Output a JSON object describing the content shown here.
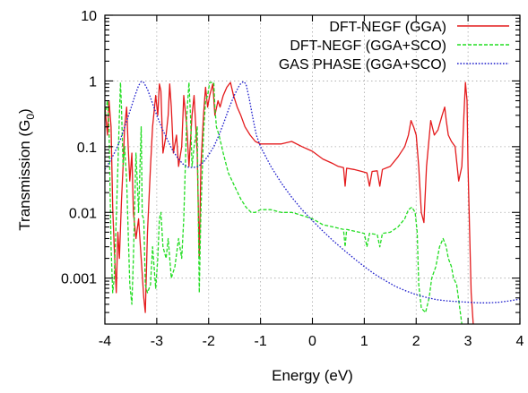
{
  "chart_data": {
    "type": "line",
    "xlabel": "Energy (eV)",
    "ylabel": "Transmission (G",
    "ylabel_sub": "0",
    "ylabel_close": ")",
    "xlim": [
      -4,
      4
    ],
    "ylim": [
      0.0002,
      10
    ],
    "yscale": "log",
    "grid": true,
    "legend_position": "top-right",
    "x_ticks": [
      -4,
      -3,
      -2,
      -1,
      0,
      1,
      2,
      3,
      4
    ],
    "x_tick_labels": [
      "-4",
      "-3",
      "-2",
      "-1",
      "0",
      "1",
      "2",
      "3",
      "4"
    ],
    "y_ticks": [
      0.001,
      0.01,
      0.1,
      1,
      10
    ],
    "y_tick_labels": [
      "0.001",
      "0.01",
      "0.1",
      "1",
      "10"
    ],
    "series": [
      {
        "name": "DFT-NEGF (GGA)",
        "color": "#e41a1c",
        "style": "solid",
        "points": [
          [
            -4.0,
            0.4
          ],
          [
            -3.95,
            0.15
          ],
          [
            -3.92,
            0.5
          ],
          [
            -3.88,
            0.2
          ],
          [
            -3.85,
            0.012
          ],
          [
            -3.82,
            0.003
          ],
          [
            -3.78,
            0.0006
          ],
          [
            -3.75,
            0.005
          ],
          [
            -3.72,
            0.002
          ],
          [
            -3.68,
            0.015
          ],
          [
            -3.65,
            0.05
          ],
          [
            -3.62,
            0.2
          ],
          [
            -3.58,
            0.4
          ],
          [
            -3.55,
            0.1
          ],
          [
            -3.52,
            0.03
          ],
          [
            -3.48,
            0.08
          ],
          [
            -3.45,
            0.01
          ],
          [
            -3.4,
            0.004
          ],
          [
            -3.35,
            0.008
          ],
          [
            -3.3,
            0.002
          ],
          [
            -3.25,
            0.0005
          ],
          [
            -3.22,
            0.0003
          ],
          [
            -3.18,
            0.005
          ],
          [
            -3.12,
            0.05
          ],
          [
            -3.08,
            0.2
          ],
          [
            -3.02,
            0.6
          ],
          [
            -2.98,
            0.3
          ],
          [
            -2.95,
            0.9
          ],
          [
            -2.92,
            0.7
          ],
          [
            -2.88,
            0.08
          ],
          [
            -2.82,
            0.15
          ],
          [
            -2.78,
            0.3
          ],
          [
            -2.75,
            0.9
          ],
          [
            -2.72,
            0.4
          ],
          [
            -2.68,
            0.08
          ],
          [
            -2.62,
            0.15
          ],
          [
            -2.58,
            0.05
          ],
          [
            -2.52,
            0.1
          ],
          [
            -2.48,
            0.6
          ],
          [
            -2.42,
            0.2
          ],
          [
            -2.38,
            0.05
          ],
          [
            -2.32,
            0.3
          ],
          [
            -2.28,
            0.6
          ],
          [
            -2.22,
            0.08
          ],
          [
            -2.18,
            0.002
          ],
          [
            -2.15,
            0.05
          ],
          [
            -2.1,
            0.3
          ],
          [
            -2.06,
            0.8
          ],
          [
            -2.02,
            0.4
          ],
          [
            -1.98,
            0.6
          ],
          [
            -1.92,
            0.9
          ],
          [
            -1.88,
            0.3
          ],
          [
            -1.82,
            0.5
          ],
          [
            -1.78,
            0.4
          ],
          [
            -1.72,
            0.6
          ],
          [
            -1.65,
            0.8
          ],
          [
            -1.58,
            0.95
          ],
          [
            -1.52,
            0.6
          ],
          [
            -1.45,
            0.4
          ],
          [
            -1.38,
            0.3
          ],
          [
            -1.3,
            0.2
          ],
          [
            -1.2,
            0.15
          ],
          [
            -1.1,
            0.12
          ],
          [
            -1.0,
            0.11
          ],
          [
            -0.8,
            0.11
          ],
          [
            -0.6,
            0.11
          ],
          [
            -0.4,
            0.12
          ],
          [
            -0.2,
            0.1
          ],
          [
            0.0,
            0.085
          ],
          [
            0.2,
            0.065
          ],
          [
            0.4,
            0.055
          ],
          [
            0.5,
            0.05
          ],
          [
            0.6,
            0.048
          ],
          [
            0.63,
            0.025
          ],
          [
            0.66,
            0.047
          ],
          [
            0.8,
            0.045
          ],
          [
            0.95,
            0.042
          ],
          [
            1.05,
            0.04
          ],
          [
            1.1,
            0.025
          ],
          [
            1.15,
            0.042
          ],
          [
            1.25,
            0.043
          ],
          [
            1.3,
            0.025
          ],
          [
            1.35,
            0.045
          ],
          [
            1.5,
            0.05
          ],
          [
            1.65,
            0.07
          ],
          [
            1.78,
            0.1
          ],
          [
            1.85,
            0.15
          ],
          [
            1.9,
            0.25
          ],
          [
            1.95,
            0.2
          ],
          [
            2.0,
            0.15
          ],
          [
            2.05,
            0.05
          ],
          [
            2.1,
            0.01
          ],
          [
            2.15,
            0.007
          ],
          [
            2.2,
            0.05
          ],
          [
            2.28,
            0.25
          ],
          [
            2.35,
            0.15
          ],
          [
            2.42,
            0.18
          ],
          [
            2.5,
            0.3
          ],
          [
            2.55,
            0.4
          ],
          [
            2.58,
            0.25
          ],
          [
            2.62,
            0.15
          ],
          [
            2.68,
            0.12
          ],
          [
            2.75,
            0.1
          ],
          [
            2.82,
            0.03
          ],
          [
            2.88,
            0.05
          ],
          [
            2.92,
            0.3
          ],
          [
            2.95,
            0.95
          ],
          [
            2.98,
            0.5
          ],
          [
            3.0,
            0.05
          ],
          [
            3.03,
            0.005
          ],
          [
            3.06,
            0.0006
          ],
          [
            3.1,
            0.0002
          ]
        ]
      },
      {
        "name": "DFT-NEGF (GGA+SCO)",
        "color": "#22dd22",
        "style": "dashed",
        "points": [
          [
            -4.0,
            0.3
          ],
          [
            -3.95,
            0.5
          ],
          [
            -3.92,
            0.2
          ],
          [
            -3.88,
            0.003
          ],
          [
            -3.85,
            0.0006
          ],
          [
            -3.82,
            0.001
          ],
          [
            -3.78,
            0.008
          ],
          [
            -3.75,
            0.05
          ],
          [
            -3.72,
            0.3
          ],
          [
            -3.7,
            0.95
          ],
          [
            -3.68,
            0.4
          ],
          [
            -3.65,
            0.05
          ],
          [
            -3.62,
            0.1
          ],
          [
            -3.58,
            0.03
          ],
          [
            -3.55,
            0.005
          ],
          [
            -3.52,
            0.0008
          ],
          [
            -3.48,
            0.0004
          ],
          [
            -3.45,
            0.002
          ],
          [
            -3.4,
            0.08
          ],
          [
            -3.35,
            0.01
          ],
          [
            -3.3,
            0.2
          ],
          [
            -3.28,
            0.009
          ],
          [
            -3.25,
            0.008
          ],
          [
            -3.22,
            0.0008
          ],
          [
            -3.18,
            0.0006
          ],
          [
            -3.12,
            0.0008
          ],
          [
            -3.08,
            0.003
          ],
          [
            -3.02,
            0.0007
          ],
          [
            -2.98,
            0.002
          ],
          [
            -2.95,
            0.008
          ],
          [
            -2.92,
            0.01
          ],
          [
            -2.88,
            0.003
          ],
          [
            -2.82,
            0.002
          ],
          [
            -2.78,
            0.004
          ],
          [
            -2.72,
            0.001
          ],
          [
            -2.65,
            0.0015
          ],
          [
            -2.58,
            0.004
          ],
          [
            -2.52,
            0.002
          ],
          [
            -2.48,
            0.008
          ],
          [
            -2.42,
            0.3
          ],
          [
            -2.38,
            0.95
          ],
          [
            -2.35,
            0.3
          ],
          [
            -2.32,
            0.05
          ],
          [
            -2.28,
            0.1
          ],
          [
            -2.22,
            0.2
          ],
          [
            -2.18,
            0.0006
          ],
          [
            -2.15,
            0.01
          ],
          [
            -2.1,
            0.15
          ],
          [
            -2.06,
            0.5
          ],
          [
            -2.02,
            0.6
          ],
          [
            -1.98,
            0.95
          ],
          [
            -1.94,
            0.95
          ],
          [
            -1.9,
            0.95
          ],
          [
            -1.88,
            0.4
          ],
          [
            -1.85,
            0.2
          ],
          [
            -1.8,
            0.15
          ],
          [
            -1.72,
            0.08
          ],
          [
            -1.62,
            0.04
          ],
          [
            -1.5,
            0.025
          ],
          [
            -1.38,
            0.016
          ],
          [
            -1.28,
            0.012
          ],
          [
            -1.18,
            0.01
          ],
          [
            -1.1,
            0.01
          ],
          [
            -1.0,
            0.011
          ],
          [
            -0.8,
            0.011
          ],
          [
            -0.6,
            0.01
          ],
          [
            -0.4,
            0.01
          ],
          [
            -0.2,
            0.009
          ],
          [
            0.0,
            0.008
          ],
          [
            0.2,
            0.0065
          ],
          [
            0.4,
            0.006
          ],
          [
            0.6,
            0.0055
          ],
          [
            0.63,
            0.003
          ],
          [
            0.66,
            0.0055
          ],
          [
            0.8,
            0.0052
          ],
          [
            1.0,
            0.0048
          ],
          [
            1.05,
            0.003
          ],
          [
            1.1,
            0.0048
          ],
          [
            1.25,
            0.0046
          ],
          [
            1.3,
            0.003
          ],
          [
            1.35,
            0.0048
          ],
          [
            1.5,
            0.005
          ],
          [
            1.65,
            0.006
          ],
          [
            1.78,
            0.008
          ],
          [
            1.85,
            0.011
          ],
          [
            1.92,
            0.012
          ],
          [
            1.98,
            0.01
          ],
          [
            2.02,
            0.005
          ],
          [
            2.05,
            0.0008
          ],
          [
            2.1,
            0.00035
          ],
          [
            2.18,
            0.0003
          ],
          [
            2.25,
            0.0005
          ],
          [
            2.3,
            0.001
          ],
          [
            2.38,
            0.0015
          ],
          [
            2.45,
            0.003
          ],
          [
            2.52,
            0.004
          ],
          [
            2.58,
            0.003
          ],
          [
            2.62,
            0.002
          ],
          [
            2.68,
            0.0015
          ],
          [
            2.72,
            0.001
          ],
          [
            2.78,
            0.0008
          ],
          [
            2.83,
            0.0004
          ],
          [
            2.88,
            0.0002
          ]
        ]
      },
      {
        "name": "GAS PHASE (GGA+SCO)",
        "color": "#1e1ecc",
        "style": "dotted",
        "points": [
          [
            -4.0,
            0.045
          ],
          [
            -3.9,
            0.06
          ],
          [
            -3.8,
            0.085
          ],
          [
            -3.7,
            0.13
          ],
          [
            -3.6,
            0.22
          ],
          [
            -3.5,
            0.38
          ],
          [
            -3.42,
            0.6
          ],
          [
            -3.35,
            0.85
          ],
          [
            -3.3,
            0.98
          ],
          [
            -3.25,
            0.95
          ],
          [
            -3.18,
            0.75
          ],
          [
            -3.1,
            0.5
          ],
          [
            -3.0,
            0.3
          ],
          [
            -2.9,
            0.19
          ],
          [
            -2.8,
            0.13
          ],
          [
            -2.7,
            0.09
          ],
          [
            -2.6,
            0.068
          ],
          [
            -2.5,
            0.055
          ],
          [
            -2.4,
            0.049
          ],
          [
            -2.3,
            0.048
          ],
          [
            -2.2,
            0.05
          ],
          [
            -2.1,
            0.058
          ],
          [
            -2.0,
            0.075
          ],
          [
            -1.9,
            0.1
          ],
          [
            -1.8,
            0.15
          ],
          [
            -1.7,
            0.24
          ],
          [
            -1.6,
            0.4
          ],
          [
            -1.5,
            0.62
          ],
          [
            -1.4,
            0.88
          ],
          [
            -1.33,
            0.98
          ],
          [
            -1.28,
            0.9
          ],
          [
            -1.22,
            0.55
          ],
          [
            -1.15,
            0.28
          ],
          [
            -1.08,
            0.15
          ],
          [
            -1.0,
            0.1
          ],
          [
            -0.8,
            0.05
          ],
          [
            -0.6,
            0.028
          ],
          [
            -0.4,
            0.017
          ],
          [
            -0.2,
            0.011
          ],
          [
            0.0,
            0.0075
          ],
          [
            0.2,
            0.0052
          ],
          [
            0.4,
            0.0037
          ],
          [
            0.6,
            0.0027
          ],
          [
            0.8,
            0.002
          ],
          [
            1.0,
            0.0015
          ],
          [
            1.2,
            0.00115
          ],
          [
            1.4,
            0.00092
          ],
          [
            1.6,
            0.00075
          ],
          [
            1.8,
            0.00064
          ],
          [
            2.0,
            0.00056
          ],
          [
            2.2,
            0.00051
          ],
          [
            2.4,
            0.00047
          ],
          [
            2.6,
            0.00045
          ],
          [
            2.8,
            0.00044
          ],
          [
            3.0,
            0.00043
          ],
          [
            3.2,
            0.00042
          ],
          [
            3.4,
            0.00042
          ],
          [
            3.6,
            0.00043
          ],
          [
            3.8,
            0.00045
          ],
          [
            4.0,
            0.00048
          ]
        ]
      }
    ]
  }
}
